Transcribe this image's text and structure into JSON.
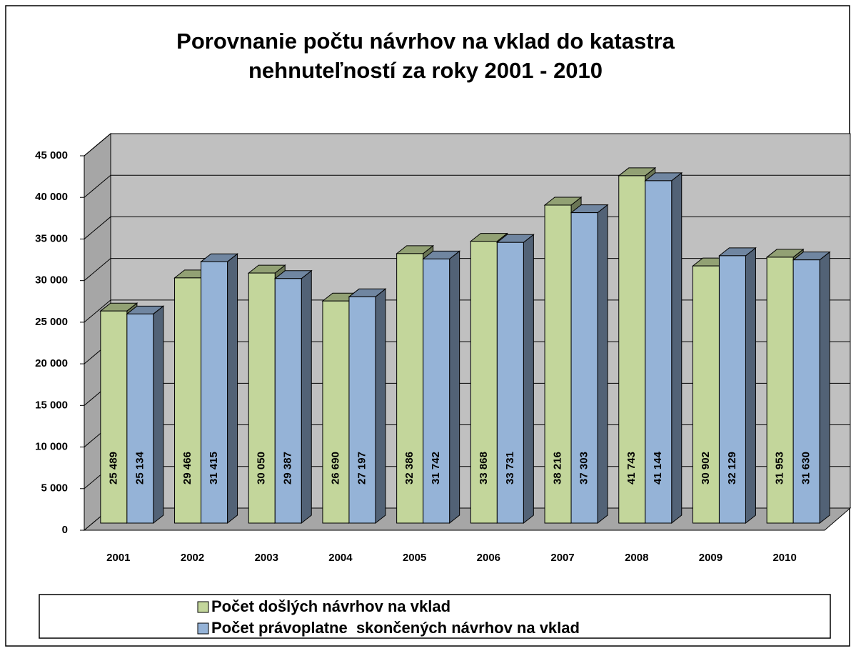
{
  "chart_data": {
    "type": "bar",
    "title": "Porovnanie počtu návrhov na vklad do katastra nehnuteľností za roky 2001 - 2010",
    "categories": [
      "2001",
      "2002",
      "2003",
      "2004",
      "2005",
      "2006",
      "2007",
      "2008",
      "2009",
      "2010"
    ],
    "series": [
      {
        "name": "Počet došlých návrhov na vklad",
        "color": "#c3d69b",
        "values": [
          25489,
          29466,
          30050,
          26690,
          32386,
          33868,
          38216,
          41743,
          30902,
          31953
        ],
        "value_labels": [
          "25 489",
          "29 466",
          "30 050",
          "26 690",
          "32 386",
          "33 868",
          "38 216",
          "41 743",
          "30 902",
          "31 953"
        ]
      },
      {
        "name": "Počet právoplatne  skončených návrhov na vklad",
        "color": "#95b3d7",
        "values": [
          25134,
          31415,
          29387,
          27197,
          31742,
          33731,
          37303,
          41144,
          32129,
          31630
        ],
        "value_labels": [
          "25 134",
          "31 415",
          "29 387",
          "27 197",
          "31 742",
          "33 731",
          "37 303",
          "41 144",
          "32 129",
          "31 630"
        ]
      }
    ],
    "ylim": [
      0,
      45000
    ],
    "yticks": [
      0,
      {
        "value": 5000,
        "label": "5 000"
      },
      {
        "value": 10000,
        "label": "10 000"
      },
      {
        "value": 15000,
        "label": "15 000"
      },
      {
        "value": 20000,
        "label": "20 000"
      },
      {
        "value": 25000,
        "label": "25 000"
      },
      {
        "value": 30000,
        "label": "30 000"
      },
      {
        "value": 35000,
        "label": "35 000"
      },
      {
        "value": 40000,
        "label": "40 000"
      },
      {
        "value": 45000,
        "label": "45 000"
      }
    ],
    "grid": true,
    "legend": "bottom"
  }
}
